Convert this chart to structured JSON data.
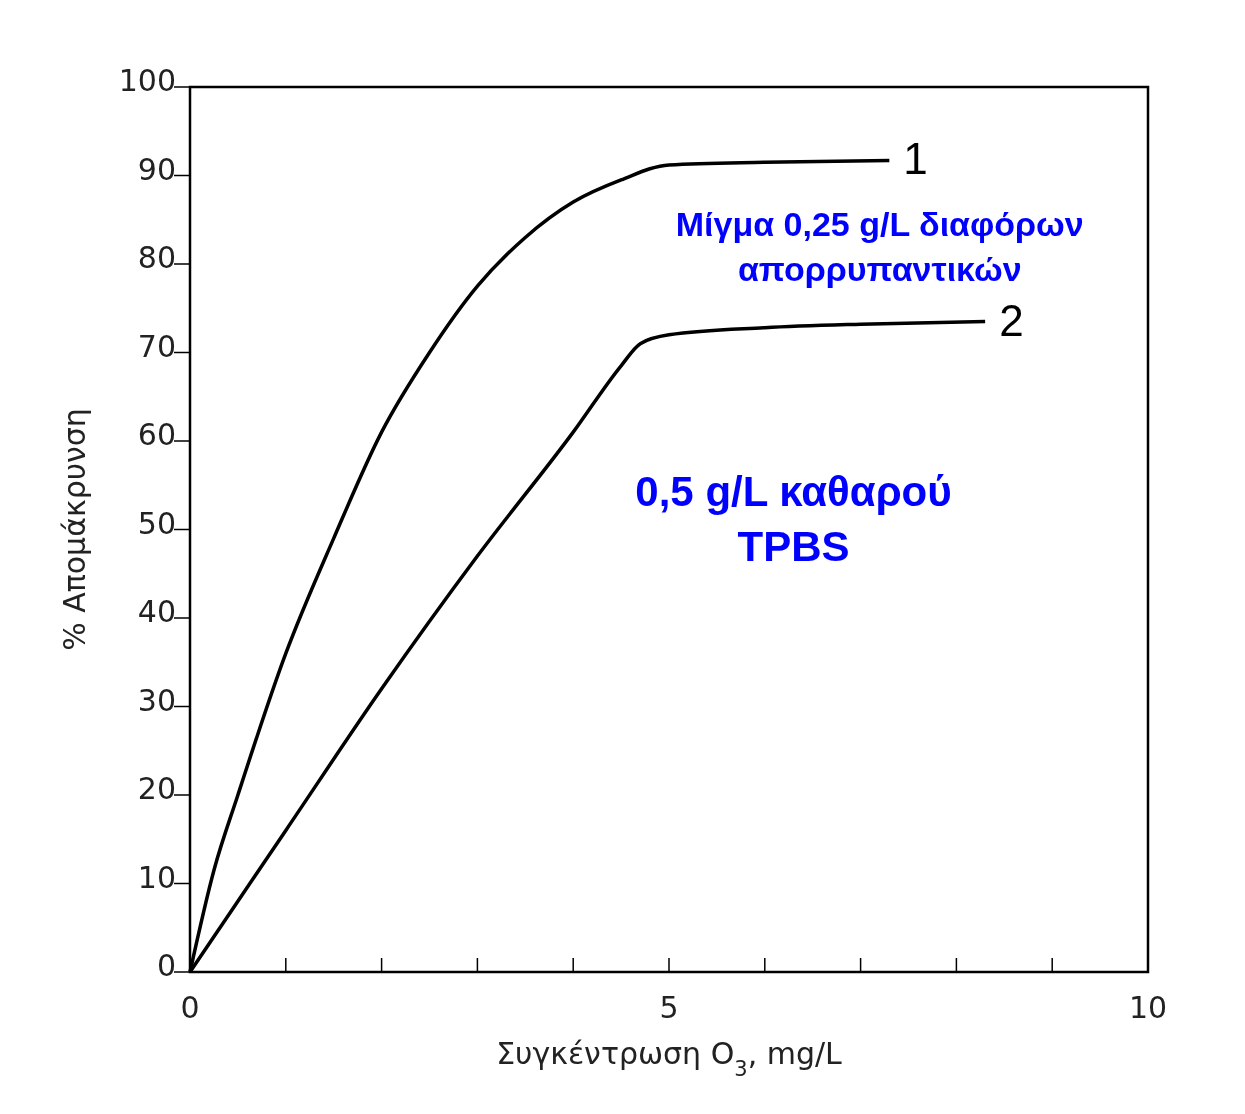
{
  "chart_data": {
    "type": "line",
    "xlabel": "Συγκέντρωση O$_{3}$, mg/L",
    "ylabel": "% Απομάκρυνση",
    "xlim": [
      0,
      10
    ],
    "ylim": [
      0,
      100
    ],
    "xticks": [
      0,
      {
        "value": 1,
        "label": null
      },
      {
        "value": 2,
        "label": null
      },
      {
        "value": 3,
        "label": null
      },
      {
        "value": 4,
        "label": null
      },
      5,
      {
        "value": 6,
        "label": null
      },
      {
        "value": 7,
        "label": null
      },
      {
        "value": 8,
        "label": null
      },
      {
        "value": 9,
        "label": null
      },
      10
    ],
    "yticks": [
      0,
      10,
      20,
      30,
      40,
      50,
      60,
      70,
      80,
      90,
      100
    ],
    "grid": false,
    "legend": false,
    "marker": "none",
    "line_style": "solid",
    "series": [
      {
        "name": "1",
        "color": "#000000",
        "x": [
          0,
          0.25,
          0.5,
          1,
          1.5,
          2,
          2.5,
          3,
          3.5,
          4,
          4.5,
          5,
          6,
          7.3
        ],
        "values": [
          0,
          11.5,
          20,
          36,
          49,
          61,
          70,
          77.5,
          83,
          87,
          89.5,
          91.2,
          91.5,
          91.7
        ]
      },
      {
        "name": "2",
        "color": "#000000",
        "x": [
          0,
          1,
          2,
          3,
          4,
          4.5,
          4.7,
          5,
          6,
          7,
          8.3
        ],
        "values": [
          0,
          16,
          32,
          47,
          61,
          68.5,
          71,
          72,
          72.8,
          73.2,
          73.5
        ]
      }
    ],
    "annotations": [
      "Μίγμα 0,25 g/L διαφόρων\nαπορρυπαντικών",
      "0,5 g/L καθαρού\nTPBS"
    ]
  }
}
